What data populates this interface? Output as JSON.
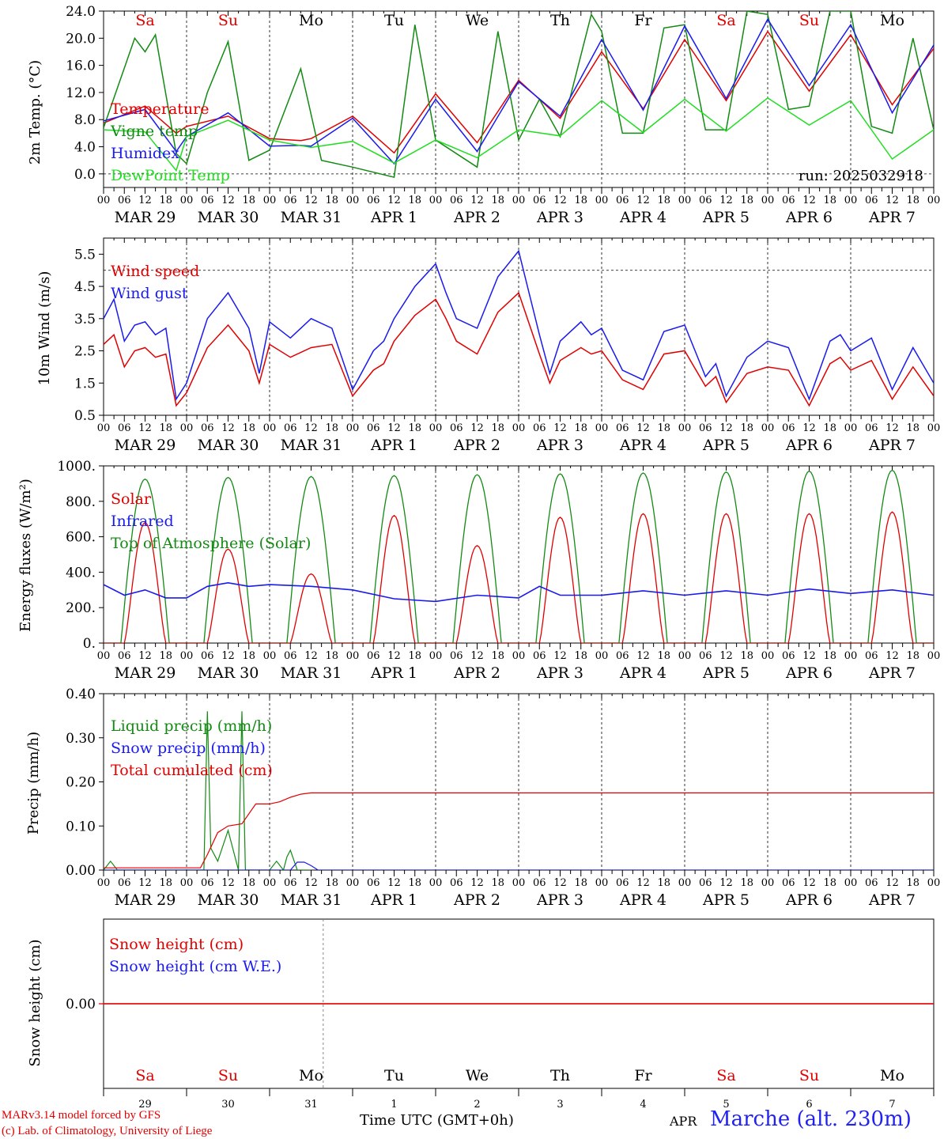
{
  "run_label": "run: 2025032918",
  "day_names": [
    "Sa",
    "Su",
    "Mo",
    "Tu",
    "We",
    "Th",
    "Fr",
    "Sa",
    "Su",
    "Mo"
  ],
  "day_colors": [
    "#e00000",
    "#e00000",
    "#000000",
    "#000000",
    "#000000",
    "#000000",
    "#000000",
    "#e00000",
    "#e00000",
    "#000000"
  ],
  "date_labels": [
    "MAR 29",
    "MAR 30",
    "MAR 31",
    "APR  1",
    "APR  2",
    "APR  3",
    "APR  4",
    "APR  5",
    "APR  6",
    "APR  7"
  ],
  "hour_ticks": [
    "00",
    "06",
    "12",
    "18"
  ],
  "bottom_day_numbers": [
    "29",
    "30",
    "31",
    "1",
    "2",
    "3",
    "4",
    "5",
    "6",
    "7"
  ],
  "footer": {
    "line1": "MARv3.14 model forced by GFS",
    "line2": "(c) Lab. of Climatology, University of Liege",
    "xlabel": "Time UTC (GMT+0h)",
    "month": "APR",
    "station": "Marche (alt. 230m)"
  },
  "colors": {
    "red": "#e00000",
    "blue": "#1a1aee",
    "green": "#138a13",
    "lightgreen": "#22dd22",
    "black": "#000000"
  },
  "chart_data": [
    {
      "type": "line",
      "ylabel": "2m Temp. (°C)",
      "ylim": [
        -2,
        24
      ],
      "yticks": [
        "0.0",
        "4.0",
        "8.0",
        "12.0",
        "16.0",
        "20.0",
        "24.0"
      ],
      "ytick_values": [
        0,
        4,
        8,
        12,
        16,
        20,
        24
      ],
      "dashed_hline": 0,
      "x_unit": "hours since MAR 29 00 UTC",
      "series": [
        {
          "name": "Temperature",
          "color": "red",
          "x": [
            0,
            12,
            21,
            24,
            36,
            48,
            57,
            60,
            72,
            84,
            96,
            108,
            120,
            132,
            144,
            156,
            168,
            180,
            192,
            204,
            216,
            228,
            240
          ],
          "values": [
            7.5,
            10,
            6,
            7,
            8.5,
            5.2,
            4.9,
            5.2,
            8.5,
            3.1,
            11.8,
            4.6,
            13.8,
            8.2,
            18,
            9.6,
            19.8,
            10.8,
            21,
            12.2,
            20.5,
            10.2,
            18.5
          ]
        },
        {
          "name": "Vigne temp",
          "color": "green",
          "x": [
            0,
            9,
            12,
            15,
            21,
            24,
            30,
            36,
            42,
            48,
            57,
            63,
            72,
            84,
            90,
            96,
            108,
            114,
            120,
            126,
            132,
            141,
            144,
            150,
            156,
            162,
            168,
            174,
            180,
            186,
            192,
            198,
            204,
            210,
            216,
            222,
            228,
            234,
            240
          ],
          "values": [
            6.8,
            20,
            18,
            20.5,
            3,
            1.5,
            12,
            19.5,
            2,
            3.5,
            15.5,
            2,
            1,
            -0.5,
            22,
            5,
            1,
            21,
            5,
            11,
            5.5,
            23.5,
            21,
            6,
            6,
            21.5,
            22,
            6.5,
            6.5,
            24,
            23.5,
            9.5,
            10,
            24,
            24,
            7,
            6,
            20,
            6.5
          ]
        },
        {
          "name": "Humidex",
          "color": "blue",
          "x": [
            0,
            12,
            21,
            24,
            36,
            48,
            57,
            60,
            72,
            84,
            96,
            108,
            120,
            132,
            144,
            156,
            168,
            180,
            192,
            204,
            216,
            228,
            240
          ],
          "values": [
            7.8,
            9.5,
            3.3,
            5.5,
            9,
            4.1,
            4.2,
            4.1,
            8.2,
            1.5,
            11,
            3.3,
            13.6,
            8.5,
            19.8,
            9.4,
            21.8,
            11.1,
            22.8,
            13,
            22,
            9,
            19
          ]
        },
        {
          "name": "DewPoint Temp",
          "color": "lightgreen",
          "x": [
            0,
            12,
            21,
            24,
            36,
            48,
            60,
            72,
            84,
            96,
            108,
            120,
            132,
            144,
            156,
            168,
            180,
            192,
            204,
            216,
            228,
            240
          ],
          "values": [
            6.5,
            6.2,
            0.5,
            5.5,
            7.9,
            5.0,
            3.9,
            4.8,
            1.6,
            5.0,
            2.4,
            6.5,
            5.6,
            10.8,
            6.1,
            11.0,
            6.3,
            11.2,
            7.2,
            10.8,
            2.2,
            6.5
          ]
        }
      ]
    },
    {
      "type": "line",
      "ylabel": "10m Wind (m/s)",
      "ylim": [
        0.5,
        6
      ],
      "yticks": [
        "0.5",
        "1.5",
        "2.5",
        "3.5",
        "4.5",
        "5.5"
      ],
      "ytick_values": [
        0.5,
        1.5,
        2.5,
        3.5,
        4.5,
        5.5
      ],
      "dashed_hline": 5,
      "x_unit": "hours since MAR 29 00 UTC",
      "series": [
        {
          "name": "Wind speed",
          "color": "red",
          "x": [
            0,
            3,
            6,
            9,
            12,
            15,
            18,
            21,
            24,
            30,
            36,
            42,
            45,
            48,
            54,
            60,
            66,
            72,
            78,
            81,
            84,
            90,
            96,
            99,
            102,
            108,
            114,
            120,
            126,
            129,
            132,
            138,
            141,
            144,
            150,
            156,
            162,
            168,
            174,
            177,
            180,
            186,
            192,
            198,
            204,
            210,
            213,
            216,
            222,
            228,
            234,
            240
          ],
          "values": [
            2.7,
            3.0,
            2.0,
            2.5,
            2.6,
            2.3,
            2.4,
            0.8,
            1.2,
            2.6,
            3.3,
            2.5,
            1.5,
            2.7,
            2.3,
            2.6,
            2.7,
            1.1,
            1.9,
            2.1,
            2.8,
            3.6,
            4.1,
            3.5,
            2.8,
            2.4,
            3.7,
            4.3,
            2.4,
            1.5,
            2.2,
            2.6,
            2.4,
            2.5,
            1.6,
            1.3,
            2.4,
            2.5,
            1.4,
            1.7,
            0.9,
            1.8,
            2.0,
            1.9,
            0.8,
            2.1,
            2.3,
            1.9,
            2.2,
            1.0,
            2.0,
            1.1
          ]
        },
        {
          "name": "Wind gust",
          "color": "blue",
          "x": [
            0,
            3,
            6,
            9,
            12,
            15,
            18,
            21,
            24,
            30,
            36,
            42,
            45,
            48,
            54,
            60,
            66,
            72,
            78,
            81,
            84,
            90,
            96,
            99,
            102,
            108,
            114,
            120,
            126,
            129,
            132,
            138,
            141,
            144,
            150,
            156,
            162,
            168,
            174,
            177,
            180,
            186,
            192,
            198,
            204,
            210,
            213,
            216,
            222,
            228,
            234,
            240
          ],
          "values": [
            3.5,
            4.1,
            2.8,
            3.3,
            3.4,
            3.0,
            3.2,
            1.0,
            1.5,
            3.5,
            4.3,
            3.2,
            1.8,
            3.4,
            2.9,
            3.5,
            3.2,
            1.3,
            2.5,
            2.8,
            3.5,
            4.5,
            5.2,
            4.3,
            3.5,
            3.2,
            4.8,
            5.6,
            3.0,
            1.8,
            2.8,
            3.4,
            3.0,
            3.2,
            1.9,
            1.6,
            3.1,
            3.3,
            1.7,
            2.1,
            1.1,
            2.3,
            2.8,
            2.6,
            1.0,
            2.8,
            3.0,
            2.5,
            2.9,
            1.3,
            2.6,
            1.5
          ]
        }
      ]
    },
    {
      "type": "line",
      "ylabel": "Energy fluxes (W/m²)",
      "ylim": [
        0,
        1000
      ],
      "yticks": [
        "0.",
        "200.",
        "400.",
        "600.",
        "800.",
        "1000."
      ],
      "ytick_values": [
        0,
        200,
        400,
        600,
        800,
        1000
      ],
      "x_unit": "hours since MAR 29 00 UTC",
      "solar_peaks": [
        680,
        530,
        390,
        720,
        550,
        710,
        730,
        730,
        730,
        740
      ],
      "toa_peaks": [
        925,
        935,
        940,
        945,
        950,
        955,
        960,
        965,
        970,
        975
      ],
      "series": [
        {
          "name": "Solar",
          "color": "red"
        },
        {
          "name": "Infrared",
          "color": "blue",
          "x": [
            0,
            6,
            12,
            18,
            24,
            30,
            36,
            42,
            48,
            60,
            72,
            84,
            96,
            108,
            120,
            126,
            132,
            144,
            156,
            168,
            180,
            192,
            204,
            216,
            228,
            240
          ],
          "values": [
            330,
            270,
            300,
            255,
            255,
            320,
            340,
            320,
            330,
            320,
            300,
            250,
            235,
            270,
            255,
            320,
            270,
            270,
            295,
            270,
            295,
            270,
            305,
            280,
            300,
            270
          ]
        },
        {
          "name": "Top of Atmosphere (Solar)",
          "color": "green"
        }
      ]
    },
    {
      "type": "line",
      "ylabel": "Precip (mm/h)",
      "ylim": [
        0,
        0.4
      ],
      "yticks": [
        "0.00",
        "0.10",
        "0.20",
        "0.30",
        "0.40"
      ],
      "ytick_values": [
        0,
        0.1,
        0.2,
        0.3,
        0.4
      ],
      "x_unit": "hours since MAR 29 00 UTC",
      "series": [
        {
          "name": "Liquid precip (mm/h)",
          "color": "green",
          "x": [
            0,
            2,
            4,
            29,
            30,
            31,
            33,
            36,
            39,
            40,
            41,
            42,
            48,
            50,
            52,
            53,
            54,
            56,
            58,
            60
          ],
          "values": [
            0,
            0.02,
            0,
            0,
            0.36,
            0.05,
            0.02,
            0.09,
            0.0,
            0.36,
            0.0,
            0.0,
            0,
            0.02,
            0.0,
            0.03,
            0.045,
            0.0,
            0,
            0
          ]
        },
        {
          "name": "Snow precip (mm/h)",
          "color": "blue",
          "x": [
            0,
            54,
            56,
            58,
            60,
            62,
            240
          ],
          "values": [
            0,
            0,
            0.018,
            0.018,
            0.01,
            0,
            0
          ]
        },
        {
          "name": "Total cumulated (cm)",
          "color": "red",
          "x": [
            0,
            28,
            30,
            33,
            36,
            40,
            44,
            48,
            51,
            54,
            57,
            60,
            240
          ],
          "values": [
            0.005,
            0.005,
            0.035,
            0.085,
            0.1,
            0.105,
            0.15,
            0.15,
            0.155,
            0.165,
            0.172,
            0.175,
            0.175
          ]
        }
      ]
    },
    {
      "type": "line",
      "ylabel": "Snow height (cm)",
      "ylim": [
        -1,
        1
      ],
      "yticks": [
        "0.00"
      ],
      "ytick_values": [
        0
      ],
      "x_unit": "hours since MAR 29 00 UTC",
      "series": [
        {
          "name": "Snow height (cm)",
          "color": "red",
          "x": [
            0,
            240
          ],
          "values": [
            0,
            0
          ]
        },
        {
          "name": "Snow height (cm W.E.)",
          "color": "blue"
        }
      ]
    }
  ]
}
